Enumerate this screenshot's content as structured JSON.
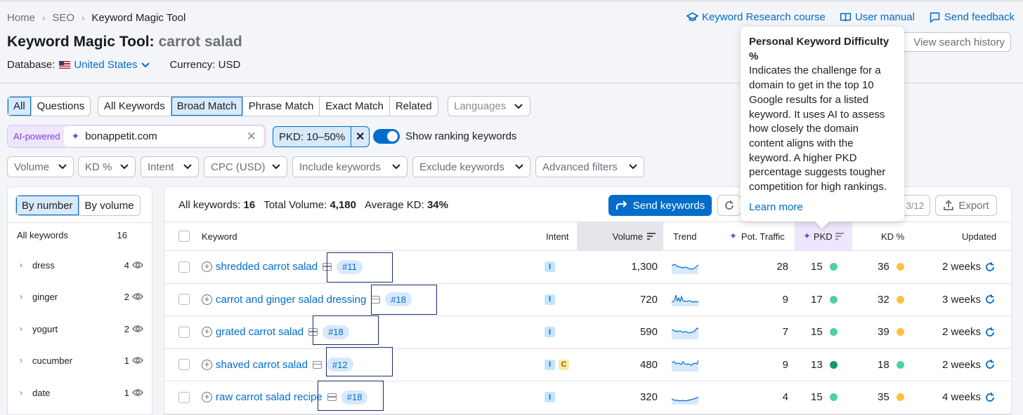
{
  "breadcrumb": [
    "Home",
    "SEO",
    "Keyword Magic Tool"
  ],
  "toplinks": {
    "course": "Keyword Research course",
    "manual": "User manual",
    "feedback": "Send feedback"
  },
  "title": {
    "main": "Keyword Magic Tool:",
    "keyword": "carrot salad"
  },
  "view_history": "View search history",
  "database": {
    "label": "Database:",
    "country": "United States",
    "currency": "Currency: USD"
  },
  "tabs_type": [
    "All",
    "Questions"
  ],
  "tabs_match": [
    "All Keywords",
    "Broad Match",
    "Phrase Match",
    "Exact Match",
    "Related"
  ],
  "languages_placeholder": "Languages",
  "ai": {
    "label": "AI-powered",
    "domain": "bonappetit.com"
  },
  "pkd_filter": "PKD: 10–50%",
  "show_ranking": "Show ranking keywords",
  "filters": [
    "Volume",
    "KD %",
    "Intent",
    "CPC (USD)",
    "Include keywords",
    "Exclude keywords",
    "Advanced filters"
  ],
  "left": {
    "by_number": "By number",
    "by_volume": "By volume",
    "all_label": "All keywords",
    "all_count": "16",
    "groups": [
      {
        "name": "dress",
        "count": "4"
      },
      {
        "name": "ginger",
        "count": "2"
      },
      {
        "name": "yogurt",
        "count": "2"
      },
      {
        "name": "cucumber",
        "count": "1"
      },
      {
        "name": "date",
        "count": "1"
      }
    ]
  },
  "summary": {
    "all_label": "All keywords:",
    "all_value": "16",
    "vol_label": "Total Volume:",
    "vol_value": "4,180",
    "kd_label": "Average KD:",
    "kd_value": "34%"
  },
  "send_keywords": "Send keywords",
  "pager_text": "3/12",
  "export": "Export",
  "headers": {
    "keyword": "Keyword",
    "intent": "Intent",
    "volume": "Volume",
    "trend": "Trend",
    "traffic": "Pot. Traffic",
    "pkd": "PKD",
    "kd": "KD %",
    "updated": "Updated"
  },
  "rows": [
    {
      "keyword": "shredded carrot salad",
      "pos": "#11",
      "intents": [
        "I"
      ],
      "volume": "1,300",
      "traffic": "28",
      "pkd": "15",
      "pkd_color": "#4fd1a0",
      "kd": "36",
      "kd_color": "#ffc23d",
      "updated": "2 weeks"
    },
    {
      "keyword": "carrot and ginger salad dressing",
      "pos": "#18",
      "intents": [
        "I"
      ],
      "volume": "720",
      "traffic": "9",
      "pkd": "17",
      "pkd_color": "#4fd1a0",
      "kd": "32",
      "kd_color": "#ffc23d",
      "updated": "3 weeks"
    },
    {
      "keyword": "grated carrot salad",
      "pos": "#18",
      "intents": [
        "I"
      ],
      "volume": "590",
      "traffic": "7",
      "pkd": "15",
      "pkd_color": "#4fd1a0",
      "kd": "39",
      "kd_color": "#ffc23d",
      "updated": "2 weeks"
    },
    {
      "keyword": "shaved carrot salad",
      "pos": "#12",
      "intents": [
        "I",
        "C"
      ],
      "volume": "480",
      "traffic": "9",
      "pkd": "13",
      "pkd_color": "#0f9a6f",
      "kd": "18",
      "kd_color": "#4fd1a0",
      "updated": "2 weeks"
    },
    {
      "keyword": "raw carrot salad recipe",
      "pos": "#18",
      "intents": [
        "I"
      ],
      "volume": "320",
      "traffic": "4",
      "pkd": "15",
      "pkd_color": "#4fd1a0",
      "kd": "35",
      "kd_color": "#ffc23d",
      "updated": "4 weeks"
    }
  ],
  "tooltip": {
    "title": "Personal Keyword Difficulty %",
    "body": "Indicates the challenge for a domain to get in the top 10 Google results for a listed keyword. It uses AI to assess how closely the domain content aligns with the keyword. A higher PKD percentage suggests tougher competition for high rankings.",
    "link": "Learn more"
  },
  "colors": {
    "accent": "#006dca",
    "ai": "#7b3fe4",
    "highlight_box": "#1a2a6c"
  },
  "icons": [
    "chevron-right-icon",
    "graduation-cap-icon",
    "book-icon",
    "feedback-icon",
    "flag-icon",
    "sparkle-icon",
    "close-icon",
    "chevron-down-icon",
    "eye-icon",
    "share-arrow-icon",
    "refresh-icon",
    "export-icon",
    "sort-icon",
    "plus-circle-icon",
    "serp-icon",
    "update-icon"
  ]
}
